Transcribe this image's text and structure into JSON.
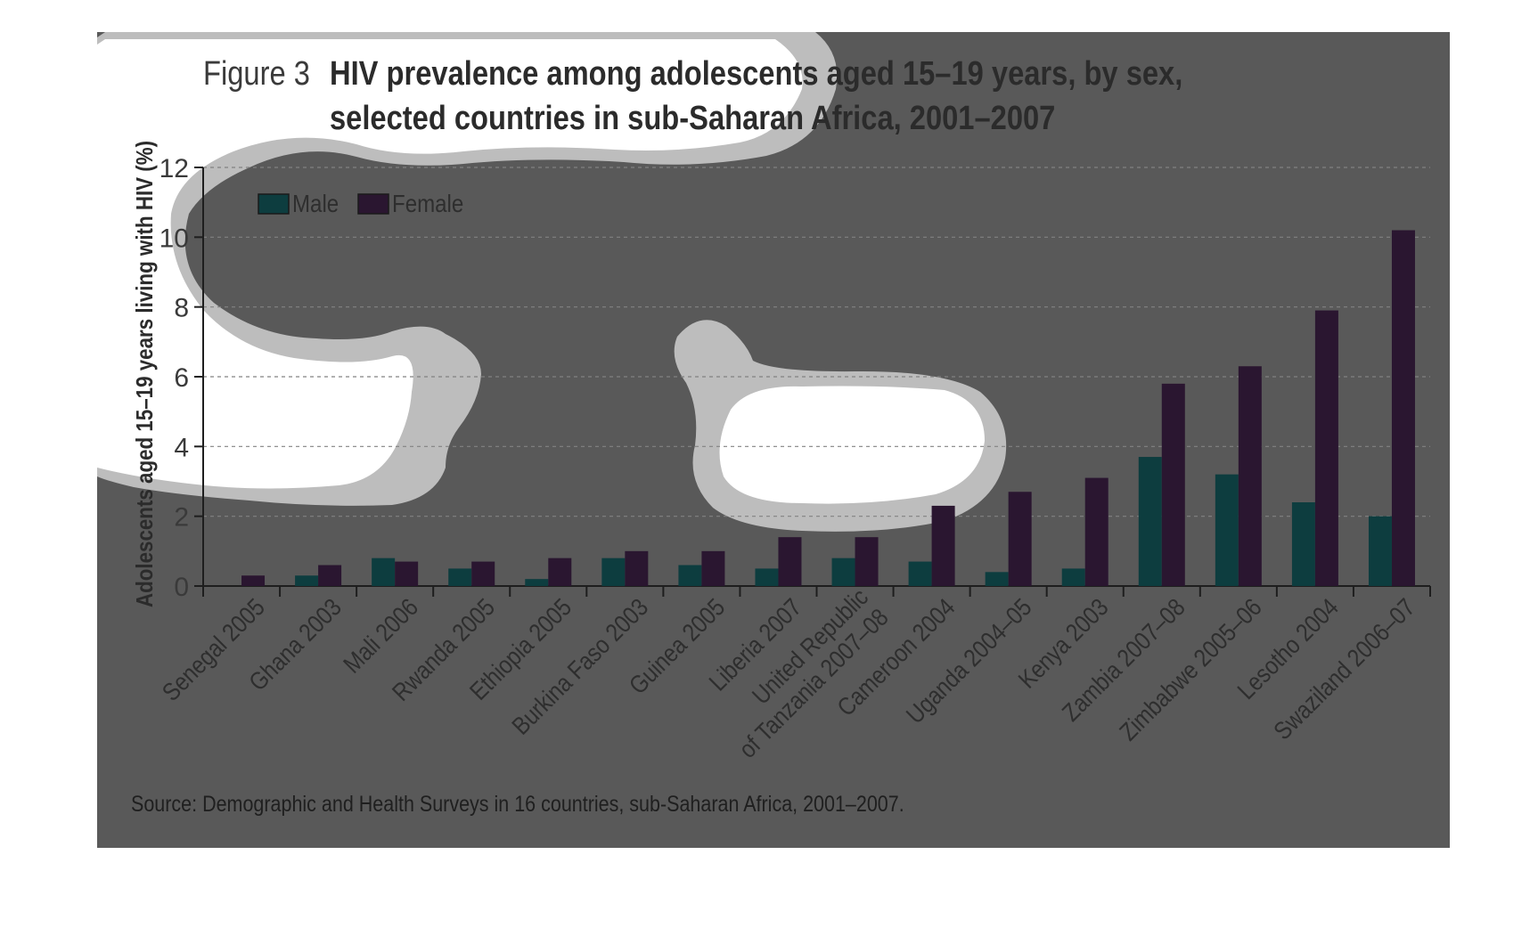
{
  "figure_label": "Figure 3",
  "title_line_1": "HIV prevalence among adolescents aged 15–19 years, by sex,",
  "title_line_2": "selected countries in sub-Saharan Africa, 2001–2007",
  "source": "Source: Demographic and Health Surveys in 16 countries, sub-Saharan Africa, 2001–2007.",
  "colors": {
    "male": "#0d3d3f",
    "female": "#2a1630",
    "panel": "#595959",
    "axis": "#1e1e1e"
  },
  "chart_data": {
    "type": "bar",
    "title": "HIV prevalence among adolescents aged 15–19 years, by sex, selected countries in sub-Saharan Africa, 2001–2007",
    "ylabel": "Adolescents aged 15–19 years living with HIV (%)",
    "xlabel": "",
    "ylim": [
      0,
      12
    ],
    "yticks": [
      0,
      2,
      4,
      6,
      8,
      10,
      12
    ],
    "grid": true,
    "legend": "top-left",
    "categories": [
      "Senegal 2005",
      "Ghana 2003",
      "Mali 2006",
      "Rwanda 2005",
      "Ethiopia 2005",
      "Burkina Faso 2003",
      "Guinea 2005",
      "Liberia 2007",
      "United Republic of Tanzania 2007–08",
      "Cameroon 2004",
      "Uganda 2004–05",
      "Kenya 2003",
      "Zambia 2007–08",
      "Zimbabwe 2005–06",
      "Lesotho 2004",
      "Swaziland 2006–07"
    ],
    "category_lines": [
      [
        "Senegal 2005"
      ],
      [
        "Ghana 2003"
      ],
      [
        "Mali 2006"
      ],
      [
        "Rwanda 2005"
      ],
      [
        "Ethiopia 2005"
      ],
      [
        "Burkina Faso 2003"
      ],
      [
        "Guinea 2005"
      ],
      [
        "Liberia 2007"
      ],
      [
        "United Republic",
        "of Tanzania 2007–08"
      ],
      [
        "Cameroon 2004"
      ],
      [
        "Uganda 2004–05"
      ],
      [
        "Kenya 2003"
      ],
      [
        "Zambia 2007–08"
      ],
      [
        "Zimbabwe 2005–06"
      ],
      [
        "Lesotho 2004"
      ],
      [
        "Swaziland 2006–07"
      ]
    ],
    "series": [
      {
        "name": "Male",
        "values": [
          0.0,
          0.3,
          0.8,
          0.5,
          0.2,
          0.8,
          0.6,
          0.5,
          0.8,
          0.7,
          0.4,
          0.5,
          3.7,
          3.2,
          2.4,
          2.0
        ]
      },
      {
        "name": "Female",
        "values": [
          0.3,
          0.6,
          0.7,
          0.7,
          0.8,
          1.0,
          1.0,
          1.4,
          1.4,
          2.3,
          2.7,
          3.1,
          5.8,
          6.3,
          7.9,
          10.2
        ]
      }
    ]
  }
}
